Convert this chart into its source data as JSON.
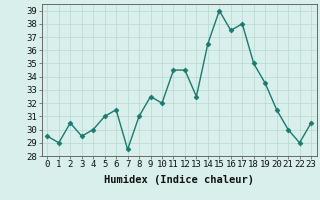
{
  "x": [
    0,
    1,
    2,
    3,
    4,
    5,
    6,
    7,
    8,
    9,
    10,
    11,
    12,
    13,
    14,
    15,
    16,
    17,
    18,
    19,
    20,
    21,
    22,
    23
  ],
  "y": [
    29.5,
    29.0,
    30.5,
    29.5,
    30.0,
    31.0,
    31.5,
    28.5,
    31.0,
    32.5,
    32.0,
    34.5,
    34.5,
    32.5,
    36.5,
    39.0,
    37.5,
    38.0,
    35.0,
    33.5,
    31.5,
    30.0,
    29.0,
    30.5
  ],
  "line_color": "#1a7a6e",
  "marker": "D",
  "marker_size": 2.5,
  "linewidth": 1.0,
  "xlabel": "Humidex (Indice chaleur)",
  "ylim": [
    28,
    39.5
  ],
  "xlim": [
    -0.5,
    23.5
  ],
  "yticks": [
    28,
    29,
    30,
    31,
    32,
    33,
    34,
    35,
    36,
    37,
    38,
    39
  ],
  "xticks": [
    0,
    1,
    2,
    3,
    4,
    5,
    6,
    7,
    8,
    9,
    10,
    11,
    12,
    13,
    14,
    15,
    16,
    17,
    18,
    19,
    20,
    21,
    22,
    23
  ],
  "xtick_labels": [
    "0",
    "1",
    "2",
    "3",
    "4",
    "5",
    "6",
    "7",
    "8",
    "9",
    "10",
    "11",
    "12",
    "13",
    "14",
    "15",
    "16",
    "17",
    "18",
    "19",
    "20",
    "21",
    "22",
    "23"
  ],
  "bg_color": "#d8efeb",
  "grid_color": "#b8d8d2",
  "tick_fontsize": 6.5,
  "label_fontsize": 7.5
}
